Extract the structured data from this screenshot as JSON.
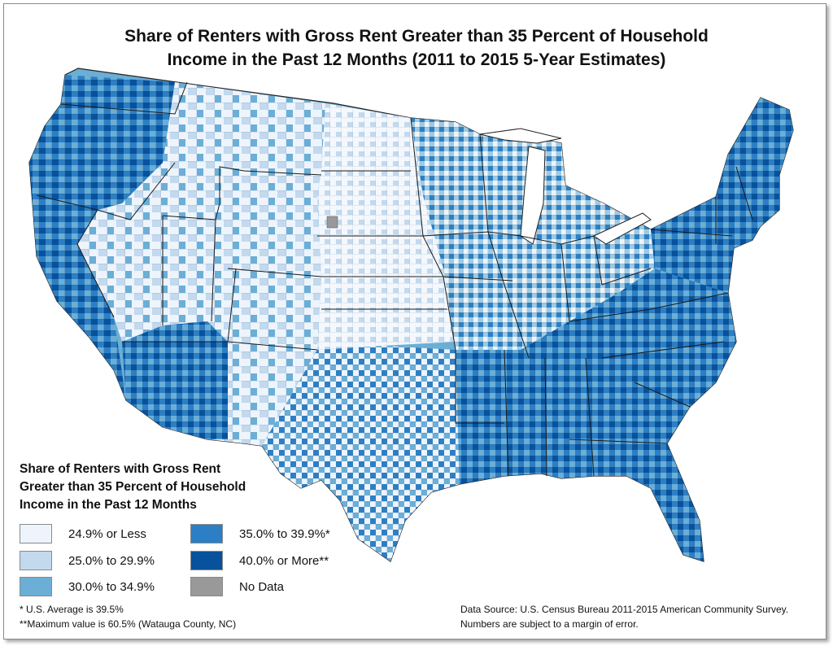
{
  "title": {
    "line1": "Share of Renters with Gross Rent Greater than 35 Percent of Household",
    "line2": "Income in the Past 12 Months (2011 to 2015 5-Year Estimates)"
  },
  "legend": {
    "title_line1": "Share of Renters with Gross Rent",
    "title_line2": "Greater than 35 Percent of Household",
    "title_line3": "Income in the Past 12 Months",
    "items": [
      {
        "label": "24.9% or Less",
        "color": "#eef4fc"
      },
      {
        "label": "25.0% to 29.9%",
        "color": "#c2d9ee"
      },
      {
        "label": "30.0% to 34.9%",
        "color": "#6baed6"
      },
      {
        "label": "35.0% to 39.9%*",
        "color": "#2c7fc4"
      },
      {
        "label": "40.0% or More**",
        "color": "#08519c"
      },
      {
        "label": "No Data",
        "color": "#999999"
      }
    ]
  },
  "footnotes": {
    "average": "*  U.S. Average is 39.5%",
    "maximum": "**Maximum value is 60.5% (Watauga County, NC)"
  },
  "source": {
    "line1": "Data Source: U.S. Census Bureau 2011-2015 American Community Survey.",
    "line2": "Numbers are subject to a margin of error."
  }
}
